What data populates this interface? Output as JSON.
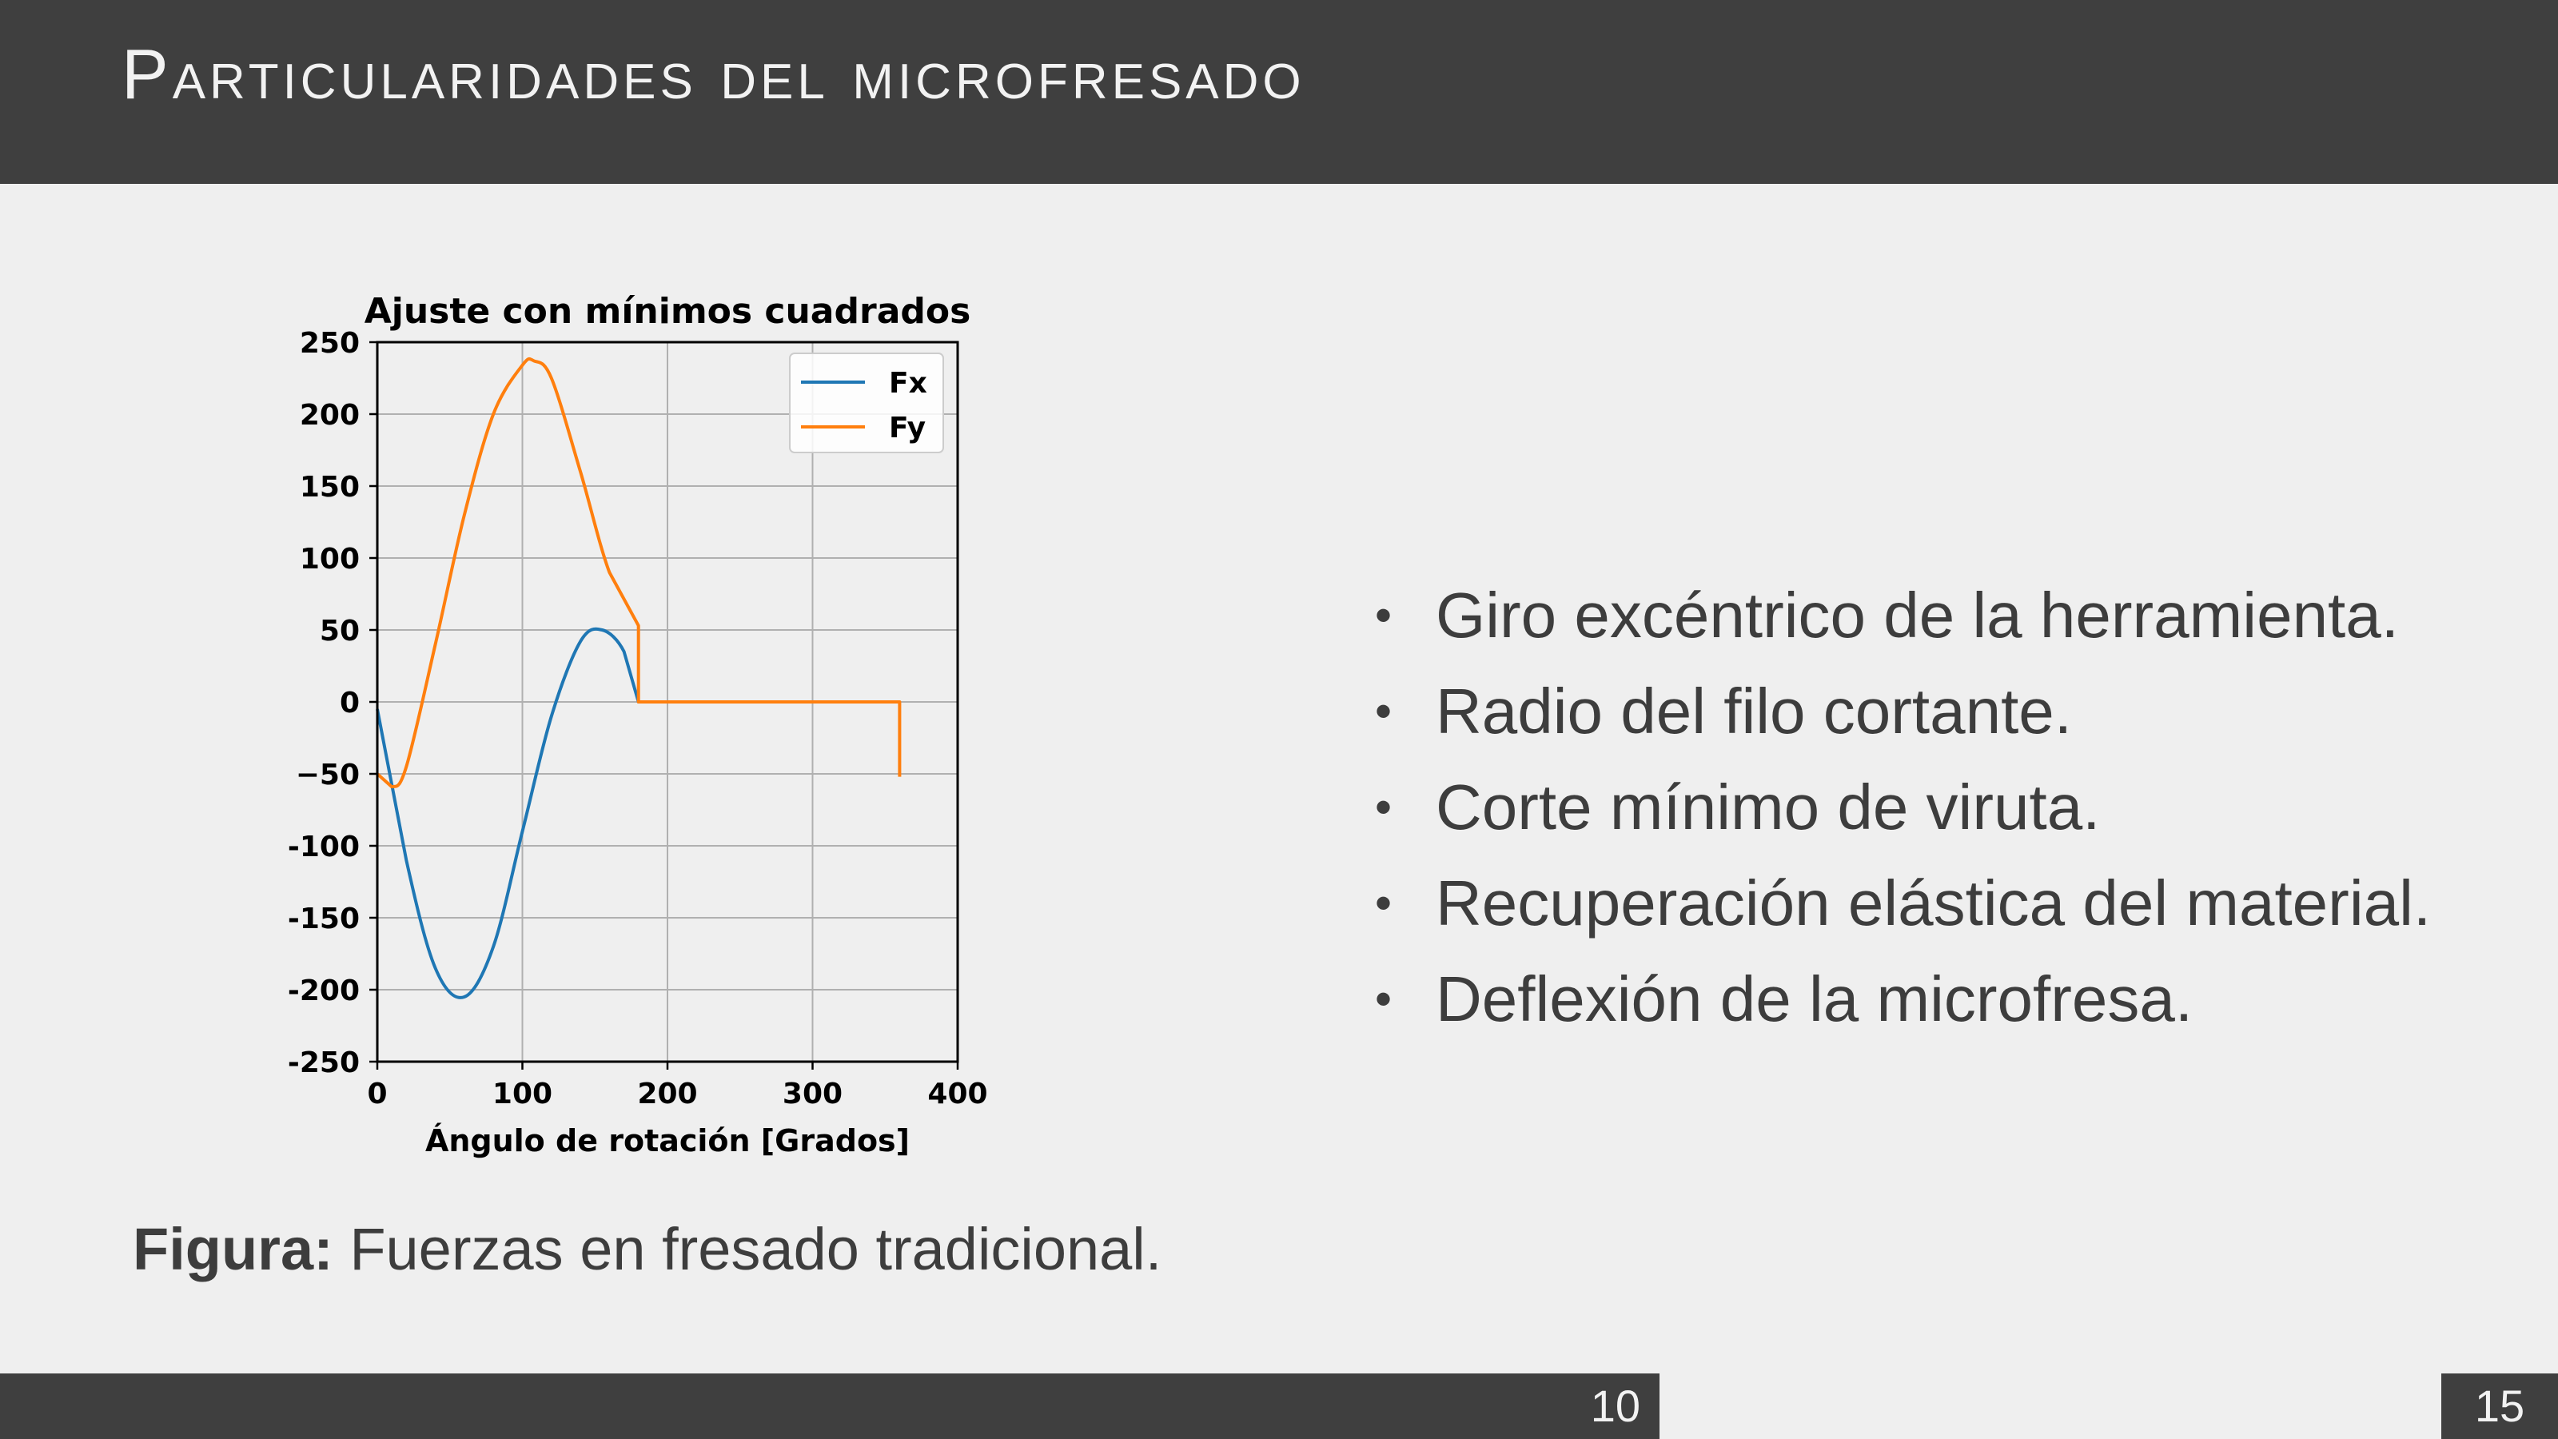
{
  "header": {
    "title": "Particularidades del microfresado"
  },
  "bullets": [
    "Giro excéntrico de la herramienta.",
    "Radio del filo cortante.",
    "Corte mínimo de viruta.",
    "Recuperación elástica del material.",
    "Deflexión de la microfresa."
  ],
  "caption": {
    "label": "Figura:",
    "text": " Fuerzas en fresado tradicional."
  },
  "footer": {
    "page": "10",
    "total": "15"
  },
  "colors": {
    "bar": "#3f3f3f",
    "fx": "#1f77b4",
    "fy": "#ff7f0e",
    "background": "#efefef"
  },
  "chart_data": {
    "type": "line",
    "title": "Ajuste con mínimos cuadrados",
    "xlabel": "Ángulo de rotación [Grados]",
    "ylabel": "",
    "xlim": [
      0,
      400
    ],
    "ylim": [
      -250,
      250
    ],
    "xticks": [
      "0",
      "100",
      "200",
      "300",
      "400"
    ],
    "yticks": [
      "250",
      "200",
      "150",
      "100",
      "50",
      "0",
      "−50",
      "-100",
      "-150",
      "-200",
      "-250"
    ],
    "grid": true,
    "legend": "top-right",
    "series": [
      {
        "name": "Fx",
        "color": "#1f77b4",
        "x": [
          0,
          20,
          40,
          60,
          80,
          100,
          120,
          140,
          155,
          170,
          180,
          180,
          360
        ],
        "y": [
          -5,
          -110,
          -185,
          -205,
          -170,
          -90,
          -10,
          42,
          50,
          35,
          0,
          0,
          0
        ]
      },
      {
        "name": "Fy",
        "color": "#ff7f0e",
        "x": [
          0,
          10,
          20,
          40,
          60,
          80,
          100,
          108,
          120,
          140,
          160,
          180,
          180,
          360,
          360
        ],
        "y": [
          -50,
          -59,
          -45,
          40,
          130,
          200,
          234,
          237,
          225,
          160,
          90,
          53,
          0,
          0,
          -52
        ]
      }
    ]
  }
}
